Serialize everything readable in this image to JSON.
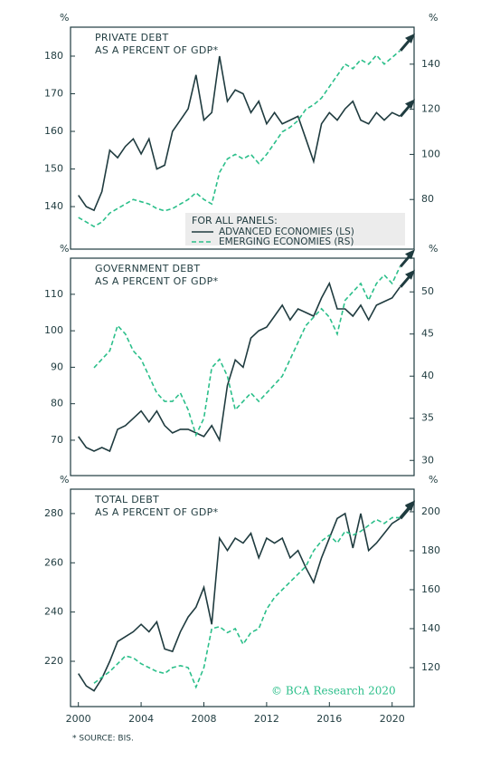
{
  "chart_data": [
    {
      "type": "line",
      "title": "PRIVATE DEBT",
      "subtitle": "AS A PERCENT OF GDP*",
      "ylabel": "%",
      "y2label": "%",
      "x": [
        2000,
        2000.5,
        2001,
        2001.5,
        2002,
        2002.5,
        2003,
        2003.5,
        2004,
        2004.5,
        2005,
        2005.5,
        2006,
        2006.5,
        2007,
        2007.5,
        2008,
        2008.5,
        2009,
        2009.5,
        2010,
        2010.5,
        2011,
        2011.5,
        2012,
        2012.5,
        2013,
        2013.5,
        2014,
        2014.5,
        2015,
        2015.5,
        2016,
        2016.5,
        2017,
        2017.5,
        2018,
        2018.5,
        2019,
        2019.5,
        2020,
        2020.5
      ],
      "xlim": [
        1999.5,
        2021.4
      ],
      "ylim": [
        128.7,
        187.7
      ],
      "yticks": [
        140,
        150,
        160,
        170,
        180
      ],
      "y2lim": [
        58,
        156.4
      ],
      "y2ticks": [
        80,
        100,
        120,
        140
      ],
      "legend": true,
      "legend_title": "FOR ALL PANELS:",
      "series": [
        {
          "name": "ADVANCED ECONOMIES (LS)",
          "color": "#1f3b3f",
          "dashed": false,
          "values": [
            143,
            140,
            139,
            144,
            155,
            153,
            156,
            158,
            154,
            158,
            150,
            151,
            160,
            163,
            166,
            175,
            163,
            165,
            180,
            168,
            171,
            170,
            165,
            168,
            162,
            165,
            162,
            163,
            164,
            158,
            152,
            162,
            165,
            163,
            166,
            168,
            163,
            162,
            165,
            163,
            165,
            164
          ]
        },
        {
          "name": "EMERGING ECONOMIES (RS)",
          "color": "#2bbf8a",
          "dashed": true,
          "axis": "y2",
          "values": [
            72,
            70,
            68,
            70,
            74,
            76,
            78,
            80,
            79,
            78,
            76,
            75,
            76,
            78,
            80,
            83,
            80,
            78,
            92,
            98,
            100,
            98,
            100,
            96,
            100,
            105,
            110,
            112,
            115,
            120,
            122,
            125,
            130,
            135,
            140,
            138,
            142,
            140,
            144,
            140,
            143,
            146
          ]
        }
      ]
    },
    {
      "type": "line",
      "title": "GOVERNMENT DEBT",
      "subtitle": "AS A PERCENT OF GDP*",
      "ylabel": "%",
      "y2label": "%",
      "x": [
        2000,
        2000.5,
        2001,
        2001.5,
        2002,
        2002.5,
        2003,
        2003.5,
        2004,
        2004.5,
        2005,
        2005.5,
        2006,
        2006.5,
        2007,
        2007.5,
        2008,
        2008.5,
        2009,
        2009.5,
        2010,
        2010.5,
        2011,
        2011.5,
        2012,
        2012.5,
        2013,
        2013.5,
        2014,
        2014.5,
        2015,
        2015.5,
        2016,
        2016.5,
        2017,
        2017.5,
        2018,
        2018.5,
        2019,
        2019.5,
        2020,
        2020.5
      ],
      "xlim": [
        1999.5,
        2021.4
      ],
      "ylim": [
        60.3,
        119.9
      ],
      "yticks": [
        70,
        80,
        90,
        100,
        110
      ],
      "y2lim": [
        28.2,
        54
      ],
      "y2ticks": [
        30,
        35,
        40,
        45,
        50
      ],
      "series": [
        {
          "color": "#1f3b3f",
          "dashed": false,
          "values": [
            71,
            68,
            67,
            68,
            67,
            73,
            74,
            76,
            78,
            75,
            78,
            74,
            72,
            73,
            73,
            72,
            71,
            74,
            70,
            85,
            92,
            90,
            98,
            100,
            101,
            104,
            107,
            103,
            106,
            105,
            104,
            109,
            113,
            106,
            106,
            104,
            107,
            103,
            107,
            108,
            109,
            112
          ]
        },
        {
          "color": "#2bbf8a",
          "dashed": true,
          "axis": "y2",
          "values": [
            null,
            null,
            41,
            42,
            43,
            46,
            45,
            43,
            42,
            40,
            38,
            37,
            37,
            38,
            36,
            33,
            35,
            41,
            42,
            40,
            36,
            37,
            38,
            37,
            38,
            39,
            40,
            42,
            44,
            46,
            47,
            48,
            47,
            45,
            49,
            50,
            51,
            49,
            51,
            52,
            51,
            53
          ]
        }
      ]
    },
    {
      "type": "line",
      "title": "TOTAL DEBT",
      "subtitle": "AS A PERCENT OF GDP*",
      "ylabel": "%",
      "y2label": "%",
      "x": [
        2000,
        2000.5,
        2001,
        2001.5,
        2002,
        2002.5,
        2003,
        2003.5,
        2004,
        2004.5,
        2005,
        2005.5,
        2006,
        2006.5,
        2007,
        2007.5,
        2008,
        2008.5,
        2009,
        2009.5,
        2010,
        2010.5,
        2011,
        2011.5,
        2012,
        2012.5,
        2013,
        2013.5,
        2014,
        2014.5,
        2015,
        2015.5,
        2016,
        2016.5,
        2017,
        2017.5,
        2018,
        2018.5,
        2019,
        2019.5,
        2020,
        2020.5
      ],
      "xlim": [
        1999.5,
        2021.4
      ],
      "xticks": [
        2000,
        2004,
        2008,
        2012,
        2016,
        2020
      ],
      "ylim": [
        201.6,
        289.9
      ],
      "yticks": [
        220,
        240,
        260,
        280
      ],
      "y2lim": [
        100,
        211.6
      ],
      "y2ticks": [
        120,
        140,
        160,
        180,
        200
      ],
      "series": [
        {
          "color": "#1f3b3f",
          "dashed": false,
          "values": [
            215,
            210,
            208,
            213,
            220,
            228,
            230,
            232,
            235,
            232,
            236,
            225,
            224,
            232,
            238,
            242,
            250,
            235,
            270,
            265,
            270,
            268,
            272,
            262,
            270,
            268,
            270,
            262,
            265,
            258,
            252,
            262,
            270,
            278,
            280,
            266,
            280,
            265,
            268,
            272,
            276,
            278
          ]
        },
        {
          "color": "#2bbf8a",
          "dashed": true,
          "axis": "y2",
          "values": [
            null,
            null,
            112,
            115,
            118,
            122,
            126,
            125,
            122,
            120,
            118,
            117,
            120,
            121,
            120,
            110,
            120,
            140,
            141,
            138,
            140,
            132,
            138,
            140,
            150,
            156,
            160,
            164,
            168,
            172,
            180,
            185,
            188,
            184,
            190,
            188,
            190,
            193,
            196,
            194,
            197,
            197
          ]
        }
      ]
    }
  ],
  "credit": "© BCA Research 2020",
  "source": "* SOURCE: BIS."
}
